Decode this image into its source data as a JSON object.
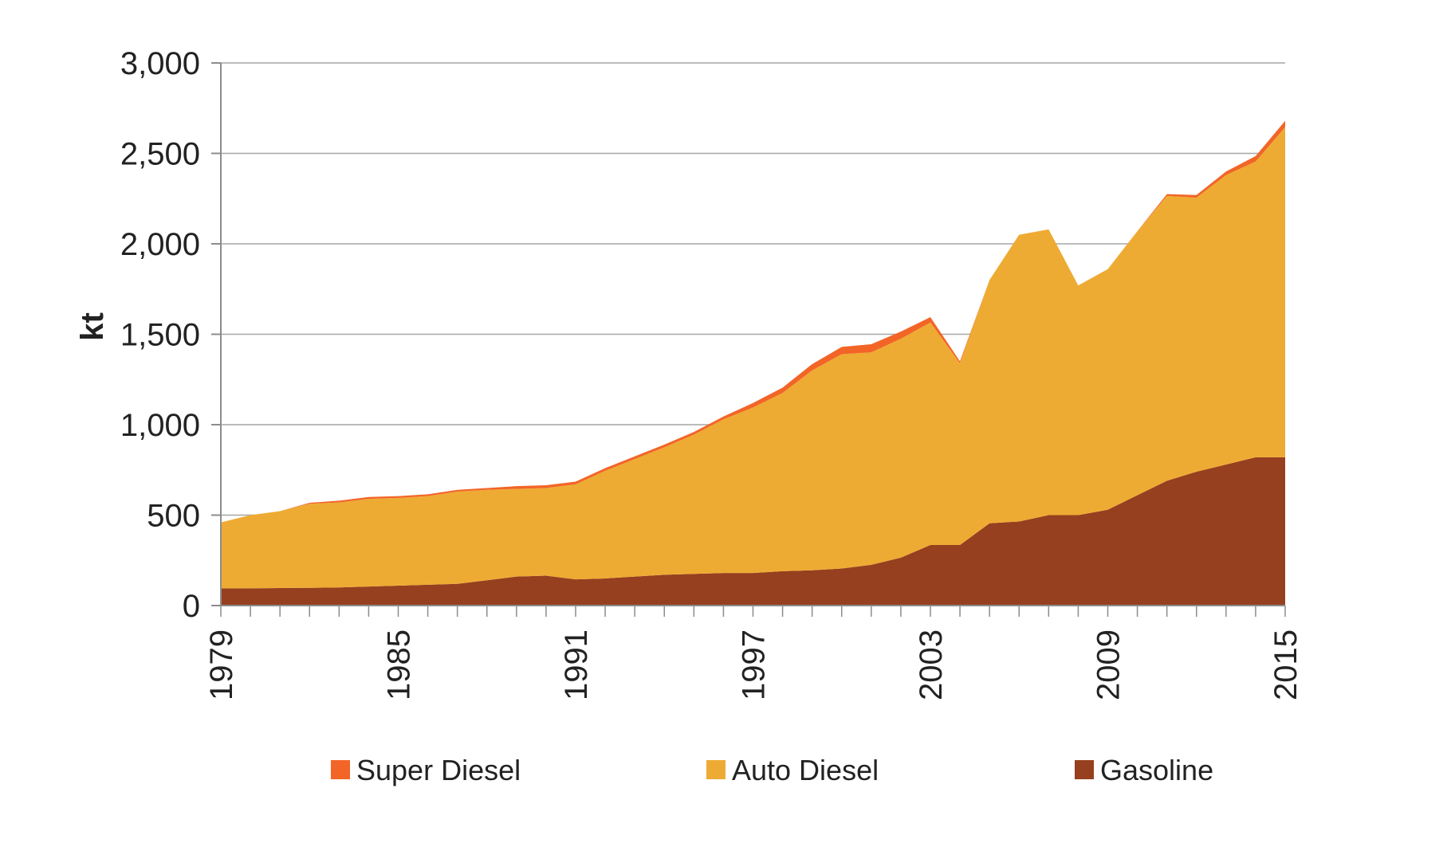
{
  "chart_data": {
    "type": "area",
    "stacked": true,
    "title": "",
    "xlabel": "",
    "ylabel": "kt",
    "ylim": [
      0,
      3000
    ],
    "yticks": [
      0,
      500,
      1000,
      1500,
      2000,
      2500,
      3000
    ],
    "ytick_labels": [
      "0",
      "500",
      "1,000",
      "1,500",
      "2,000",
      "2,500",
      "3,000"
    ],
    "xlim": [
      1979,
      2015
    ],
    "xticks": [
      1979,
      1985,
      1991,
      1997,
      2003,
      2009,
      2015
    ],
    "xtick_labels": [
      "1979",
      "1985",
      "1991",
      "1997",
      "2003",
      "2009",
      "2015"
    ],
    "x_tick_label_rotation": -90,
    "grid": "horizontal",
    "legend_position": "bottom",
    "x": [
      1979,
      1980,
      1981,
      1982,
      1983,
      1984,
      1985,
      1986,
      1987,
      1988,
      1989,
      1990,
      1991,
      1992,
      1993,
      1994,
      1995,
      1996,
      1997,
      1998,
      1999,
      2000,
      2001,
      2002,
      2003,
      2004,
      2005,
      2006,
      2007,
      2008,
      2009,
      2010,
      2011,
      2012,
      2013,
      2014,
      2015
    ],
    "series": [
      {
        "name": "Gasoline",
        "color": "#96401f",
        "values": [
          95,
          95,
          97,
          98,
          100,
          105,
          110,
          115,
          120,
          140,
          160,
          165,
          145,
          150,
          160,
          170,
          175,
          180,
          180,
          190,
          195,
          205,
          225,
          265,
          335,
          335,
          455,
          465,
          500,
          500,
          530,
          610,
          690,
          740,
          780,
          820,
          820
        ]
      },
      {
        "name": "Auto Diesel",
        "color": "#eeab33",
        "values": [
          365,
          405,
          425,
          465,
          470,
          485,
          485,
          490,
          510,
          500,
          485,
          485,
          525,
          595,
          650,
          705,
          770,
          850,
          915,
          985,
          1105,
          1185,
          1175,
          1210,
          1230,
          1005,
          1345,
          1585,
          1580,
          1270,
          1330,
          1460,
          1575,
          1515,
          1600,
          1635,
          1825
        ]
      },
      {
        "name": "Super Diesel",
        "color": "#f26527",
        "values": [
          0,
          0,
          0,
          5,
          10,
          10,
          10,
          10,
          10,
          10,
          15,
          15,
          15,
          15,
          15,
          15,
          15,
          15,
          25,
          30,
          35,
          40,
          45,
          40,
          30,
          10,
          0,
          0,
          0,
          0,
          0,
          0,
          10,
          15,
          20,
          30,
          35
        ]
      }
    ],
    "legend_order": [
      "Super Diesel",
      "Auto Diesel",
      "Gasoline"
    ]
  }
}
